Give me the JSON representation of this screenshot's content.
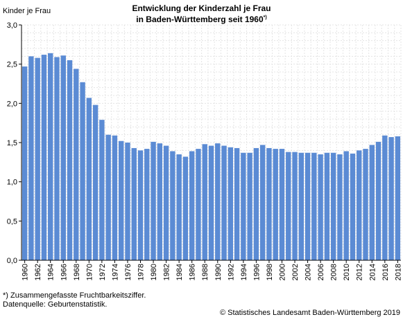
{
  "chart_data": {
    "type": "bar",
    "title_line1": "Entwicklung der Kinderzahl je Frau",
    "title_line2": "in Baden-Württemberg seit 1960",
    "title_mark": "*)",
    "ylabel": "Kinder je Frau",
    "xlabel": "",
    "ylim": [
      0,
      3
    ],
    "yticks": [
      "0,0",
      "0,5",
      "1,0",
      "1,5",
      "2,0",
      "2,5",
      "3,0"
    ],
    "grid": true,
    "bar_color": "#5b8bd4",
    "categories": [
      "1960",
      "1961",
      "1962",
      "1963",
      "1964",
      "1965",
      "1966",
      "1967",
      "1968",
      "1969",
      "1970",
      "1971",
      "1972",
      "1973",
      "1974",
      "1975",
      "1976",
      "1977",
      "1978",
      "1979",
      "1980",
      "1981",
      "1982",
      "1983",
      "1984",
      "1985",
      "1986",
      "1987",
      "1988",
      "1989",
      "1990",
      "1991",
      "1992",
      "1993",
      "1994",
      "1995",
      "1996",
      "1997",
      "1998",
      "1999",
      "2000",
      "2001",
      "2002",
      "2003",
      "2004",
      "2005",
      "2006",
      "2007",
      "2008",
      "2009",
      "2010",
      "2011",
      "2012",
      "2013",
      "2014",
      "2015",
      "2016",
      "2017",
      "2018"
    ],
    "xtick_labels": [
      "1960",
      "1962",
      "1964",
      "1966",
      "1968",
      "1970",
      "1972",
      "1974",
      "1976",
      "1978",
      "1980",
      "1982",
      "1984",
      "1986",
      "1988",
      "1990",
      "1992",
      "1994",
      "1996",
      "1998",
      "2000",
      "2002",
      "2004",
      "2006",
      "2008",
      "2010",
      "2012",
      "2014",
      "2016",
      "2018"
    ],
    "values": [
      2.47,
      2.6,
      2.58,
      2.62,
      2.64,
      2.59,
      2.61,
      2.55,
      2.44,
      2.27,
      2.07,
      1.98,
      1.79,
      1.6,
      1.59,
      1.52,
      1.5,
      1.43,
      1.4,
      1.42,
      1.51,
      1.49,
      1.46,
      1.39,
      1.35,
      1.32,
      1.39,
      1.42,
      1.48,
      1.46,
      1.49,
      1.46,
      1.44,
      1.43,
      1.37,
      1.37,
      1.43,
      1.47,
      1.43,
      1.42,
      1.42,
      1.38,
      1.38,
      1.37,
      1.37,
      1.37,
      1.35,
      1.37,
      1.37,
      1.35,
      1.39,
      1.36,
      1.4,
      1.42,
      1.47,
      1.51,
      1.59,
      1.57,
      1.58
    ]
  },
  "notes": {
    "footnote": "*) Zusammengefasste Fruchtbarkeitsziffer.",
    "source": "Datenquelle: Geburtenstatistik.",
    "copyright": "© Statistisches Landesamt Baden-Württemberg 2019"
  }
}
